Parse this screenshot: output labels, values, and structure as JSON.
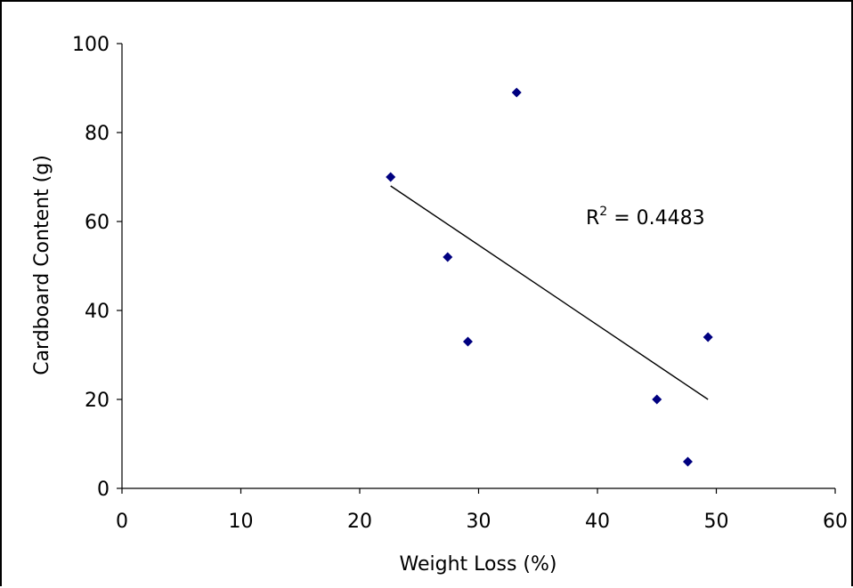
{
  "chart_data": {
    "type": "scatter",
    "title": "",
    "xlabel": "Weight Loss (%)",
    "ylabel": "Cardboard Content (g)",
    "xlim": [
      0,
      60
    ],
    "ylim": [
      0,
      100
    ],
    "x_ticks": [
      0,
      10,
      20,
      30,
      40,
      50,
      60
    ],
    "y_ticks": [
      0,
      20,
      40,
      60,
      80,
      100
    ],
    "grid": false,
    "legend": "none",
    "series": [
      {
        "marker": "diamond",
        "color": "#000080",
        "points": [
          {
            "x": 22.6,
            "y": 70
          },
          {
            "x": 27.4,
            "y": 52
          },
          {
            "x": 29.1,
            "y": 33
          },
          {
            "x": 33.2,
            "y": 89
          },
          {
            "x": 45.0,
            "y": 20
          },
          {
            "x": 47.6,
            "y": 6
          },
          {
            "x": 49.3,
            "y": 34
          }
        ]
      }
    ],
    "trendline": {
      "type": "linear",
      "color": "#000000",
      "x": [
        22.6,
        49.3
      ],
      "y": [
        68,
        20
      ]
    },
    "annotation": {
      "r2_label": "R",
      "r2_sup": "2",
      "r2_value": " = 0.4483"
    }
  }
}
